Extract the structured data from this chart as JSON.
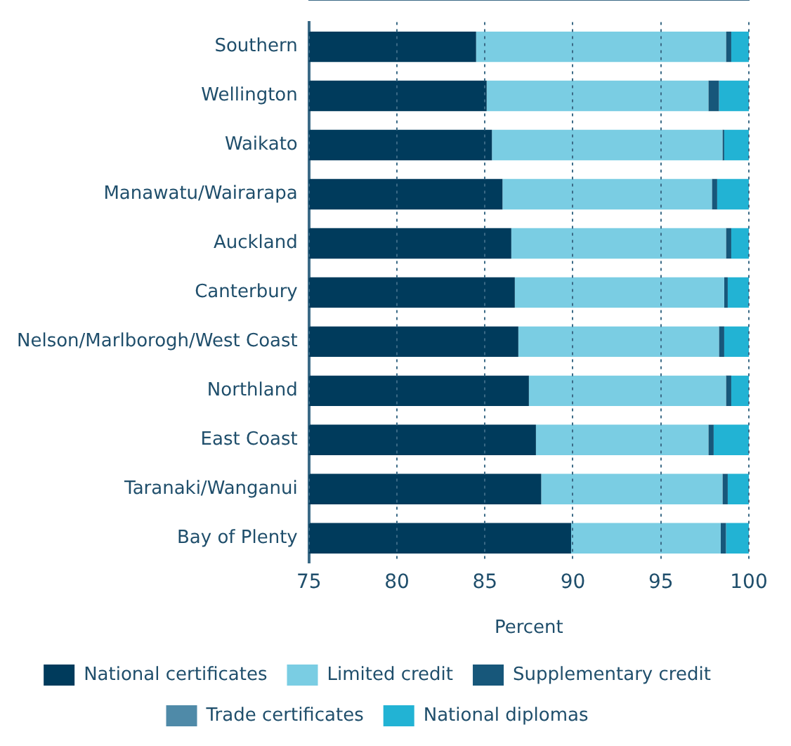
{
  "chart_data": {
    "type": "bar",
    "orientation": "horizontal",
    "stacked": true,
    "xlabel": "Percent",
    "categories": [
      "Southern",
      "Wellington",
      "Waikato",
      "Manawatu/Wairarapa",
      "Auckland",
      "Canterbury",
      "Nelson/Marlborogh/West Coast",
      "Northland",
      "East Coast",
      "Taranaki/Wanganui",
      "Bay of Plenty"
    ],
    "series": [
      {
        "name": "National certificates",
        "color": "#003b5c",
        "values": [
          84.5,
          85.1,
          85.4,
          86.0,
          86.5,
          86.7,
          86.9,
          87.5,
          87.9,
          88.2,
          89.9
        ]
      },
      {
        "name": "Limited credit",
        "color": "#7acde3",
        "base": [
          84.5,
          85.1,
          85.4,
          86.0,
          86.5,
          86.7,
          86.9,
          87.5,
          87.9,
          88.2,
          89.9
        ],
        "values": [
          14.2,
          12.6,
          13.1,
          11.9,
          12.2,
          11.9,
          11.4,
          11.2,
          9.8,
          10.3,
          8.5
        ]
      },
      {
        "name": "Supplementary credit",
        "color": "#17577a",
        "base": [
          98.7,
          97.7,
          98.5,
          97.9,
          98.7,
          98.6,
          98.3,
          98.7,
          97.7,
          98.5,
          98.4
        ],
        "values": [
          0.3,
          0.6,
          0.1,
          0.3,
          0.3,
          0.2,
          0.3,
          0.3,
          0.3,
          0.3,
          0.3
        ]
      },
      {
        "name": "Trade certificates",
        "color": "#4f8aa8",
        "values": [
          null,
          null,
          null,
          null,
          null,
          null,
          null,
          null,
          null,
          null,
          null
        ]
      },
      {
        "name": "National diplomas",
        "color": "#22b3d4",
        "base": [
          99.0,
          98.3,
          98.6,
          98.2,
          99.0,
          98.8,
          98.6,
          99.0,
          98.0,
          98.8,
          98.7
        ],
        "values": [
          1.0,
          1.7,
          1.4,
          1.8,
          1.0,
          1.2,
          1.4,
          1.0,
          2.0,
          1.2,
          1.3
        ]
      }
    ],
    "xlim": [
      75,
      100
    ],
    "xticks": [
      75,
      80,
      85,
      90,
      95,
      100
    ],
    "grid": "x",
    "legend": "bottom"
  }
}
